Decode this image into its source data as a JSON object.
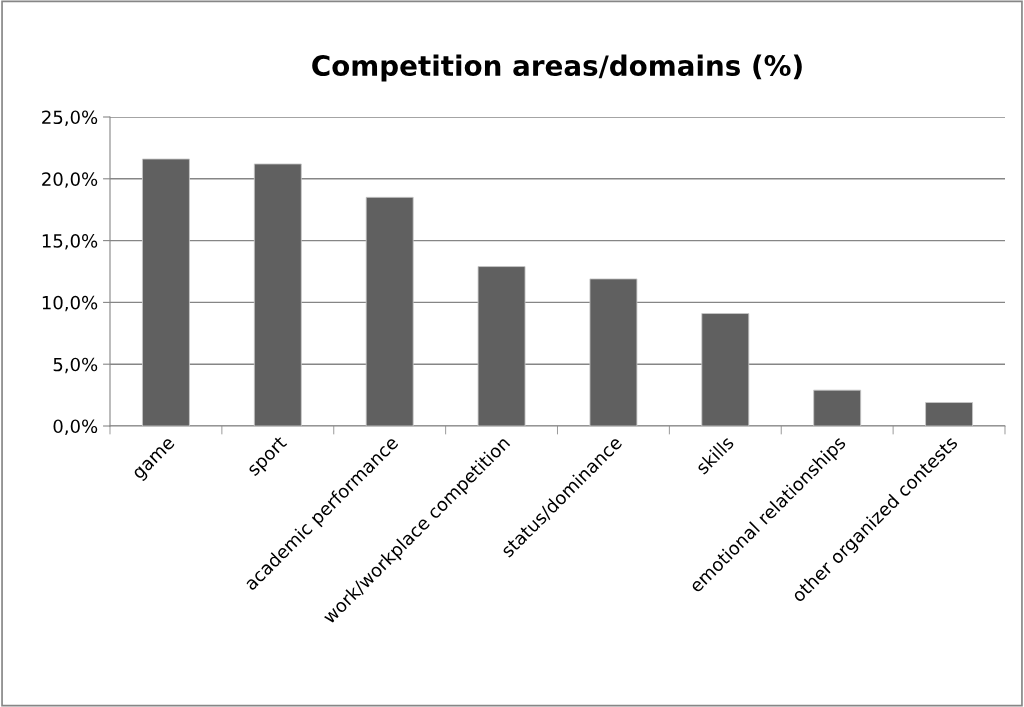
{
  "chart_data": {
    "type": "bar",
    "title": "Competition areas/domains (%)",
    "categories": [
      "game",
      "sport",
      "academic performance",
      "work/workplace competition",
      "status/dominance",
      "skills",
      "emotional relationships",
      "other organized contests"
    ],
    "values": [
      21.6,
      21.2,
      18.5,
      12.9,
      11.9,
      9.1,
      2.9,
      1.9
    ],
    "color": "#606060",
    "ylim": [
      0,
      25
    ],
    "yticks": [
      {
        "value": 0,
        "label": "0,0%"
      },
      {
        "value": 5,
        "label": "5,0%"
      },
      {
        "value": 10,
        "label": "10,0%"
      },
      {
        "value": 15,
        "label": "15,0%"
      },
      {
        "value": 20,
        "label": "20,0%"
      },
      {
        "value": 25,
        "label": "25,0%"
      }
    ],
    "grid": "y",
    "legend": false
  }
}
